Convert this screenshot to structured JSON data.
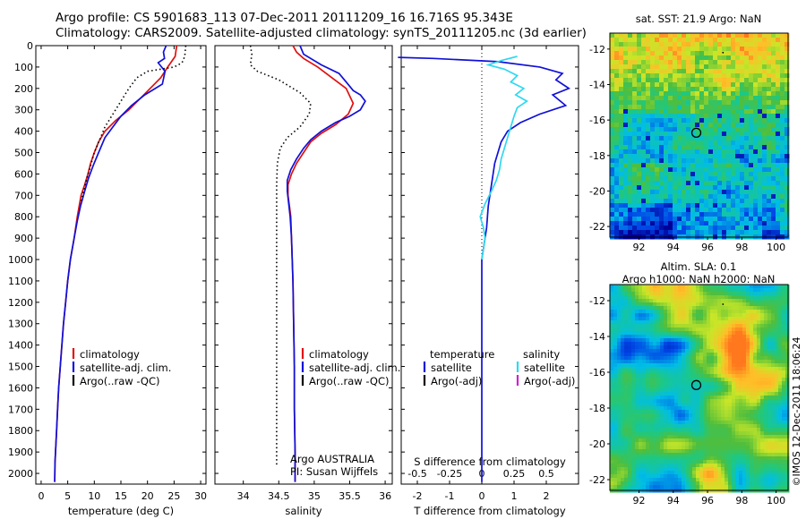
{
  "header": {
    "line1": "Argo profile: CS 5901683_113 07-Dec-2011 20111209_16 16.716S 95.343E",
    "line2": "Climatology: CARS2009. Satellite-adjusted climatology: synTS_20111205.nc (3d earlier)"
  },
  "colors": {
    "climatology": "#e01010",
    "satellite": "#1010d8",
    "argo": "#000000",
    "sat_salinity": "#30d8f0",
    "argo_adj_salinity": "#d020d0"
  },
  "chart_data": [
    {
      "type": "line",
      "id": "temperature",
      "xlabel": "temperature (deg C)",
      "ylabel": "",
      "xlim": [
        -1,
        31
      ],
      "ylim": [
        0,
        2050
      ],
      "y_reversed": true,
      "xticks": [
        0,
        5,
        10,
        15,
        20,
        25,
        30
      ],
      "yticks": [
        0,
        100,
        200,
        300,
        400,
        500,
        600,
        700,
        800,
        900,
        1000,
        1100,
        1200,
        1300,
        1400,
        1500,
        1600,
        1700,
        1800,
        1900,
        2000
      ],
      "legend": [
        "climatology",
        "satellite-adj. clim.",
        "Argo(..raw -QC)"
      ],
      "series": [
        {
          "name": "climatology",
          "style": "solid",
          "color": "#e01010",
          "points": [
            [
              25.5,
              0
            ],
            [
              25.2,
              50
            ],
            [
              23.8,
              100
            ],
            [
              22.5,
              150
            ],
            [
              20.5,
              200
            ],
            [
              18.5,
              250
            ],
            [
              16.5,
              300
            ],
            [
              14,
              350
            ],
            [
              12,
              400
            ],
            [
              10.8,
              450
            ],
            [
              10,
              500
            ],
            [
              9.3,
              550
            ],
            [
              8.8,
              600
            ],
            [
              8.2,
              650
            ],
            [
              7.5,
              700
            ],
            [
              6.8,
              800
            ],
            [
              6.2,
              900
            ],
            [
              5.5,
              1000
            ],
            [
              5,
              1100
            ],
            [
              4.6,
              1200
            ],
            [
              4.2,
              1300
            ],
            [
              3.9,
              1400
            ],
            [
              3.6,
              1500
            ],
            [
              3.3,
              1600
            ],
            [
              3.1,
              1700
            ],
            [
              2.9,
              1800
            ],
            [
              2.7,
              1900
            ],
            [
              2.6,
              1950
            ],
            [
              2.55,
              2040
            ]
          ]
        },
        {
          "name": "satellite-adj. clim.",
          "style": "solid",
          "color": "#1010d8",
          "points": [
            [
              23.5,
              0
            ],
            [
              23,
              30
            ],
            [
              23.2,
              60
            ],
            [
              22,
              80
            ],
            [
              23.3,
              120
            ],
            [
              22.8,
              180
            ],
            [
              19.5,
              230
            ],
            [
              17,
              280
            ],
            [
              15,
              330
            ],
            [
              13.5,
              380
            ],
            [
              12,
              430
            ],
            [
              10.8,
              500
            ],
            [
              9.8,
              560
            ],
            [
              8.9,
              620
            ],
            [
              8.2,
              680
            ],
            [
              7.4,
              750
            ],
            [
              6.8,
              820
            ],
            [
              6.2,
              900
            ],
            [
              5.5,
              1000
            ],
            [
              5,
              1100
            ],
            [
              4.6,
              1200
            ],
            [
              4.2,
              1300
            ],
            [
              3.9,
              1400
            ],
            [
              3.6,
              1500
            ],
            [
              3.3,
              1600
            ],
            [
              3.1,
              1700
            ],
            [
              2.9,
              1800
            ],
            [
              2.7,
              1900
            ],
            [
              2.6,
              1950
            ],
            [
              2.55,
              2040
            ]
          ]
        },
        {
          "name": "Argo(..raw -QC)",
          "style": "dotted",
          "color": "#000000",
          "points": [
            [
              27.2,
              0
            ],
            [
              27,
              50
            ],
            [
              26.5,
              80
            ],
            [
              25,
              100
            ],
            [
              20,
              120
            ],
            [
              18,
              150
            ],
            [
              16.5,
              200
            ],
            [
              15,
              260
            ],
            [
              13.5,
              320
            ],
            [
              12,
              380
            ],
            [
              11,
              440
            ],
            [
              10,
              500
            ],
            [
              9.3,
              560
            ],
            [
              8.6,
              620
            ],
            [
              8,
              680
            ],
            [
              7.4,
              740
            ]
          ]
        }
      ]
    },
    {
      "type": "line",
      "id": "salinity",
      "xlabel": "salinity",
      "ylabel": "",
      "xlim": [
        33.6,
        36.1
      ],
      "ylim": [
        0,
        2050
      ],
      "y_reversed": true,
      "xticks": [
        34,
        34.5,
        35,
        35.5,
        36
      ],
      "legend": [
        "climatology",
        "satellite-adj. clim.",
        "Argo(..raw -QC)"
      ],
      "annotation": [
        "Argo AUSTRALIA",
        "PI: Susan Wijffels"
      ],
      "series": [
        {
          "name": "climatology",
          "style": "solid",
          "color": "#e01010",
          "points": [
            [
              34.7,
              0
            ],
            [
              34.75,
              30
            ],
            [
              34.85,
              60
            ],
            [
              35.05,
              100
            ],
            [
              35.25,
              150
            ],
            [
              35.45,
              200
            ],
            [
              35.55,
              270
            ],
            [
              35.48,
              320
            ],
            [
              35.3,
              370
            ],
            [
              35.1,
              410
            ],
            [
              34.95,
              450
            ],
            [
              34.85,
              500
            ],
            [
              34.75,
              550
            ],
            [
              34.68,
              600
            ],
            [
              34.63,
              650
            ],
            [
              34.63,
              700
            ],
            [
              34.65,
              750
            ],
            [
              34.67,
              800
            ],
            [
              34.68,
              900
            ],
            [
              34.69,
              1000
            ],
            [
              34.7,
              1100
            ],
            [
              34.71,
              1300
            ],
            [
              34.72,
              1500
            ],
            [
              34.72,
              1700
            ],
            [
              34.73,
              1900
            ],
            [
              34.73,
              2040
            ]
          ]
        },
        {
          "name": "satellite-adj. clim.",
          "style": "solid",
          "color": "#1010d8",
          "points": [
            [
              34.8,
              0
            ],
            [
              34.85,
              40
            ],
            [
              35.1,
              90
            ],
            [
              35.35,
              130
            ],
            [
              35.45,
              170
            ],
            [
              35.55,
              210
            ],
            [
              35.65,
              230
            ],
            [
              35.72,
              260
            ],
            [
              35.65,
              300
            ],
            [
              35.5,
              330
            ],
            [
              35.3,
              360
            ],
            [
              35.1,
              400
            ],
            [
              34.95,
              440
            ],
            [
              34.85,
              480
            ],
            [
              34.75,
              530
            ],
            [
              34.67,
              580
            ],
            [
              34.62,
              630
            ],
            [
              34.62,
              680
            ],
            [
              34.64,
              740
            ],
            [
              34.66,
              800
            ],
            [
              34.68,
              900
            ],
            [
              34.69,
              1000
            ],
            [
              34.7,
              1100
            ],
            [
              34.71,
              1300
            ],
            [
              34.72,
              1500
            ],
            [
              34.72,
              1700
            ],
            [
              34.73,
              1900
            ],
            [
              34.73,
              2040
            ]
          ]
        },
        {
          "name": "Argo(..raw -QC)",
          "style": "dotted",
          "color": "#000000",
          "points": [
            [
              34.1,
              0
            ],
            [
              34.12,
              40
            ],
            [
              34.1,
              90
            ],
            [
              34.2,
              120
            ],
            [
              34.5,
              160
            ],
            [
              34.8,
              220
            ],
            [
              34.95,
              270
            ],
            [
              34.93,
              320
            ],
            [
              34.8,
              380
            ],
            [
              34.62,
              430
            ],
            [
              34.52,
              480
            ],
            [
              34.48,
              550
            ],
            [
              34.47,
              650
            ],
            [
              34.47,
              800
            ],
            [
              34.47,
              1000
            ],
            [
              34.47,
              1200
            ],
            [
              34.47,
              1400
            ],
            [
              34.47,
              1600
            ],
            [
              34.47,
              1800
            ],
            [
              34.47,
              1970
            ]
          ]
        }
      ]
    },
    {
      "type": "line",
      "id": "differences",
      "xlabel": "T difference from climatology",
      "x2label": "S difference from climatology",
      "xlim": [
        -2.5,
        3.0
      ],
      "ylim": [
        0,
        2050
      ],
      "y_reversed": true,
      "xticks": [
        -2,
        -1,
        0,
        1,
        2
      ],
      "x2ticks": [
        "-0.5",
        "-0.25",
        "0",
        "0.25",
        "0.5"
      ],
      "legend_temperature": [
        "temperature",
        "satellite",
        "Argo(-adj)"
      ],
      "legend_salinity": [
        "salinity",
        "satellite",
        "Argo(-adj)"
      ],
      "series": [
        {
          "name": "satellite",
          "style": "solid",
          "color": "#1010d8",
          "points": [
            [
              -2.6,
              55
            ],
            [
              -1.5,
              60
            ],
            [
              0.5,
              75
            ],
            [
              1.8,
              100
            ],
            [
              2.5,
              130
            ],
            [
              2.3,
              160
            ],
            [
              2.7,
              200
            ],
            [
              2.2,
              230
            ],
            [
              2.6,
              280
            ],
            [
              1.8,
              320
            ],
            [
              1.2,
              360
            ],
            [
              0.8,
              400
            ],
            [
              0.6,
              450
            ],
            [
              0.5,
              500
            ],
            [
              0.4,
              550
            ],
            [
              0.3,
              650
            ],
            [
              0.2,
              750
            ],
            [
              0.15,
              850
            ],
            [
              0.05,
              950
            ],
            [
              0,
              1000
            ],
            [
              0,
              1100
            ],
            [
              0,
              1300
            ],
            [
              0,
              1500
            ],
            [
              0,
              1700
            ],
            [
              0,
              1900
            ],
            [
              0,
              2040
            ]
          ]
        },
        {
          "name": "satellite",
          "style": "solid",
          "color": "#30d8f0",
          "points": [
            [
              1.1,
              50
            ],
            [
              0.6,
              70
            ],
            [
              0.2,
              90
            ],
            [
              0.7,
              110
            ],
            [
              1.1,
              140
            ],
            [
              0.9,
              170
            ],
            [
              1.3,
              200
            ],
            [
              1.05,
              230
            ],
            [
              1.4,
              260
            ],
            [
              1.1,
              290
            ],
            [
              1.0,
              330
            ],
            [
              0.9,
              380
            ],
            [
              0.8,
              430
            ],
            [
              0.7,
              480
            ],
            [
              0.6,
              530
            ],
            [
              0.55,
              580
            ],
            [
              0.45,
              630
            ],
            [
              0.3,
              680
            ],
            [
              0.1,
              740
            ],
            [
              -0.05,
              800
            ],
            [
              0.05,
              850
            ],
            [
              0.1,
              900
            ],
            [
              0.05,
              950
            ],
            [
              0,
              1000
            ]
          ]
        }
      ]
    },
    {
      "type": "heatmap",
      "id": "sst_map",
      "title": "sat. SST: 21.9 Argo: NaN",
      "xticks": [
        92,
        94,
        96,
        98,
        100
      ],
      "yticks": [
        -12,
        -14,
        -16,
        -18,
        -20,
        -22
      ],
      "xlim": [
        90.3,
        100.7
      ],
      "ylim": [
        -22.6,
        -11.1
      ],
      "profile_location": [
        95.343,
        -16.716
      ]
    },
    {
      "type": "heatmap",
      "id": "sla_map",
      "title_line1": "Altim. SLA: 0.1",
      "title_line2": "Argo h1000: NaN h2000: NaN",
      "xticks": [
        92,
        94,
        96,
        98,
        100
      ],
      "yticks": [
        -12,
        -14,
        -16,
        -18,
        -20,
        -22
      ],
      "xlim": [
        90.3,
        100.7
      ],
      "ylim": [
        -22.6,
        -11.1
      ],
      "profile_location": [
        95.343,
        -16.716
      ]
    }
  ],
  "footer_stamp": "©IMOS 12-Dec-2011 18:06:24"
}
